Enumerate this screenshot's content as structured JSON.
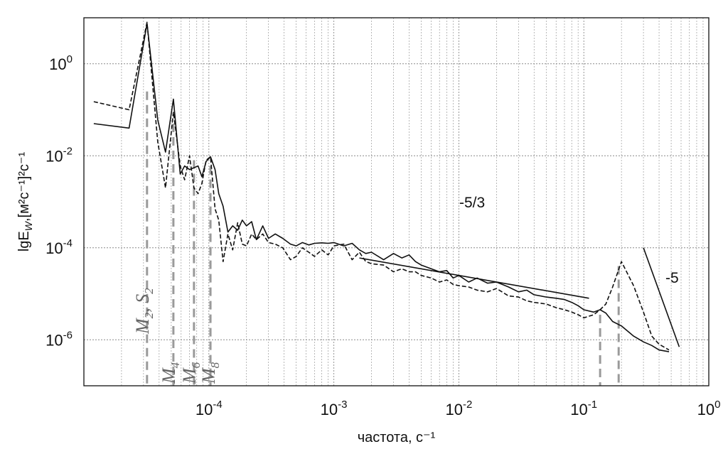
{
  "chart_data": {
    "type": "line",
    "title": "",
    "xlabel": "частота, с⁻¹",
    "ylabel": "lgE_W,[м²с⁻¹]²с⁻¹",
    "x_scale": "log",
    "y_scale": "log",
    "xlim": [
      1e-05,
      1
    ],
    "ylim": [
      1e-07,
      10
    ],
    "grid": true,
    "x_ticks": [
      {
        "value": 0.0001,
        "base": "10",
        "exp": "-4"
      },
      {
        "value": 0.001,
        "base": "10",
        "exp": "-3"
      },
      {
        "value": 0.01,
        "base": "10",
        "exp": "-2"
      },
      {
        "value": 0.1,
        "base": "10",
        "exp": "-1"
      },
      {
        "value": 1,
        "base": "10",
        "exp": "0"
      }
    ],
    "y_ticks": [
      {
        "value": 1e-06,
        "base": "10",
        "exp": "-6"
      },
      {
        "value": 0.0001,
        "base": "10",
        "exp": "-4"
      },
      {
        "value": 0.01,
        "base": "10",
        "exp": "-2"
      },
      {
        "value": 1,
        "base": "10",
        "exp": "0"
      }
    ],
    "series": [
      {
        "style": "solid",
        "x": [
          1.2e-05,
          2.3e-05,
          3.2e-05,
          3.9e-05,
          4.5e-05,
          5.2e-05,
          5.9e-05,
          6.4e-05,
          7e-05,
          7.6e-05,
          8.2e-05,
          8.8e-05,
          9.5e-05,
          0.000103,
          0.000112,
          0.00012,
          0.00013,
          0.000142,
          0.000155,
          0.00017,
          0.000185,
          0.0002,
          0.00022,
          0.00024,
          0.00027,
          0.0003,
          0.00034,
          0.00039,
          0.00045,
          0.0005,
          0.00056,
          0.00063,
          0.0007,
          0.0008,
          0.0009,
          0.001,
          0.0012,
          0.0014,
          0.0016,
          0.0018,
          0.002,
          0.0025,
          0.003,
          0.0035,
          0.004,
          0.0045,
          0.005,
          0.006,
          0.007,
          0.008,
          0.009,
          0.01,
          0.012,
          0.014,
          0.017,
          0.02,
          0.025,
          0.03,
          0.035,
          0.04,
          0.05,
          0.06,
          0.07,
          0.08,
          0.09,
          0.1,
          0.12,
          0.135,
          0.15,
          0.17,
          0.2,
          0.25,
          0.3,
          0.35,
          0.4,
          0.48
        ],
        "y": [
          0.05,
          0.04,
          7.5,
          0.06,
          0.012,
          0.17,
          0.004,
          0.006,
          0.005,
          0.0055,
          0.006,
          0.0035,
          0.0075,
          0.0095,
          0.005,
          0.0015,
          0.0008,
          0.00022,
          0.0003,
          0.00024,
          0.0004,
          0.0003,
          0.00037,
          0.00015,
          0.0003,
          0.00016,
          0.0002,
          0.00016,
          0.00012,
          0.00011,
          0.00013,
          0.000115,
          0.000125,
          0.000128,
          0.000125,
          0.00013,
          0.00011,
          0.000125,
          9e-05,
          7.5e-05,
          8e-05,
          5.5e-05,
          7.5e-05,
          6e-05,
          7e-05,
          5e-05,
          4.2e-05,
          3.5e-05,
          3e-05,
          3.2e-05,
          2.2e-05,
          2.5e-05,
          1.8e-05,
          2.2e-05,
          1.7e-05,
          1.8e-05,
          1.4e-05,
          1.1e-05,
          1.2e-05,
          9.5e-06,
          8.5e-06,
          8e-06,
          7.5e-06,
          6.5e-06,
          5.5e-06,
          4.5e-06,
          4e-06,
          4.5e-06,
          3.8e-06,
          2.5e-06,
          2e-06,
          1.2e-06,
          9e-07,
          7.5e-07,
          6e-07,
          5.5e-07
        ]
      },
      {
        "style": "dashed",
        "x": [
          1.2e-05,
          2.3e-05,
          3.2e-05,
          3.9e-05,
          4.5e-05,
          5.2e-05,
          5.9e-05,
          6.4e-05,
          7e-05,
          7.6e-05,
          8.2e-05,
          8.8e-05,
          9.5e-05,
          0.000103,
          0.000112,
          0.00012,
          0.00013,
          0.000142,
          0.000155,
          0.00017,
          0.000185,
          0.0002,
          0.00022,
          0.00024,
          0.00027,
          0.0003,
          0.00034,
          0.00039,
          0.00045,
          0.0005,
          0.00056,
          0.00063,
          0.0007,
          0.0008,
          0.0009,
          0.001,
          0.0012,
          0.0014,
          0.0016,
          0.0018,
          0.002,
          0.0025,
          0.003,
          0.0035,
          0.004,
          0.0045,
          0.005,
          0.006,
          0.007,
          0.008,
          0.009,
          0.01,
          0.012,
          0.014,
          0.017,
          0.02,
          0.025,
          0.03,
          0.035,
          0.04,
          0.05,
          0.06,
          0.07,
          0.08,
          0.09,
          0.1,
          0.12,
          0.135,
          0.15,
          0.17,
          0.2,
          0.25,
          0.3,
          0.35,
          0.4,
          0.48
        ],
        "y": [
          0.15,
          0.1,
          8,
          0.02,
          0.002,
          0.09,
          0.006,
          0.003,
          0.01,
          0.002,
          0.0015,
          0.0025,
          0.008,
          0.0095,
          0.0007,
          0.0004,
          5e-05,
          0.0002,
          9e-05,
          0.00035,
          0.00012,
          0.00011,
          0.0002,
          0.00015,
          0.0002,
          0.00013,
          0.00012,
          0.0001,
          5.5e-05,
          6.5e-05,
          0.0001,
          8e-05,
          6.5e-05,
          9e-05,
          7e-05,
          0.00011,
          0.00012,
          5.5e-05,
          8e-05,
          5e-05,
          4.5e-05,
          4.2e-05,
          3e-05,
          3.5e-05,
          3e-05,
          3e-05,
          2.5e-05,
          2.2e-05,
          1.8e-05,
          2e-05,
          1.6e-05,
          1.5e-05,
          1.4e-05,
          1.2e-05,
          1.1e-05,
          1.3e-05,
          9e-06,
          8.5e-06,
          7e-06,
          6.5e-06,
          6e-06,
          5e-06,
          4.5e-06,
          4e-06,
          3.5e-06,
          3e-06,
          3.5e-06,
          4.5e-06,
          6e-06,
          1.4e-05,
          5e-05,
          1.5e-05,
          4e-06,
          1.2e-06,
          8e-07,
          6e-07
        ]
      }
    ],
    "reference_lines": [
      {
        "label": "-5/3",
        "x": [
          0.0016,
          0.11
        ],
        "y": [
          6e-05,
          8e-06
        ]
      },
      {
        "label": "-5",
        "x": [
          0.3,
          0.58
        ],
        "y": [
          0.0001,
          7e-07
        ]
      }
    ],
    "tidal_markers": [
      {
        "name": "M",
        "sub": "2",
        "extra": ", S",
        "extra_sub": "2",
        "x": 3.2e-05,
        "y_top": 0.25
      },
      {
        "name": "M",
        "sub": "4",
        "extra": "",
        "extra_sub": "",
        "x": 5.2e-05,
        "y_top": 0.05
      },
      {
        "name": "M",
        "sub": "6",
        "extra": "",
        "extra_sub": "",
        "x": 7.6e-05,
        "y_top": 0.008
      },
      {
        "name": "M",
        "sub": "8",
        "extra": "",
        "extra_sub": "",
        "x": 0.000103,
        "y_top": 0.006
      },
      {
        "name": "",
        "sub": "",
        "extra": "",
        "extra_sub": "",
        "x": 0.135,
        "y_top": 3.5e-06
      },
      {
        "name": "",
        "sub": "",
        "extra": "",
        "extra_sub": "",
        "x": 0.19,
        "y_top": 4e-05
      }
    ]
  }
}
